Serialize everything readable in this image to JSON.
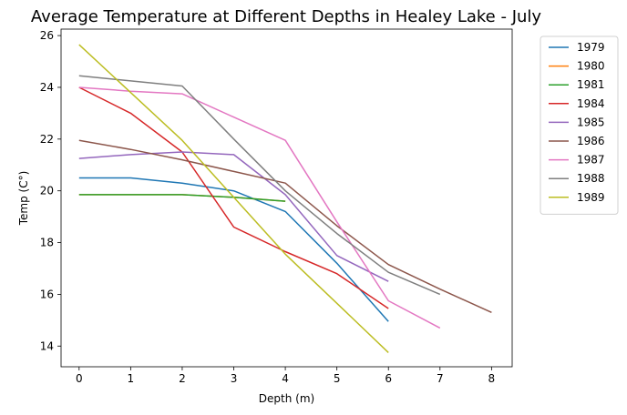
{
  "chart_data": {
    "type": "line",
    "title": "Average Temperature at Different Depths in Healey Lake - July",
    "xlabel": "Depth (m)",
    "ylabel": "Temp (C°)",
    "xlim": [
      -0.35,
      8.4
    ],
    "ylim": [
      13.2,
      26.25
    ],
    "xticks": [
      0,
      1,
      2,
      3,
      4,
      5,
      6,
      7,
      8
    ],
    "yticks": [
      14,
      16,
      18,
      20,
      22,
      24,
      26
    ],
    "grid": false,
    "legend_position": "outside-right",
    "series": [
      {
        "name": "1979",
        "color": "#1f77b4",
        "x": [
          0,
          1,
          2,
          3,
          4,
          5,
          6
        ],
        "y": [
          20.5,
          20.5,
          20.3,
          20.0,
          19.2,
          17.2,
          14.95
        ]
      },
      {
        "name": "1980",
        "color": "#ff7f0e",
        "x": [
          0,
          1,
          2,
          3,
          4
        ],
        "y": [
          19.85,
          19.85,
          19.85,
          19.75,
          19.6
        ]
      },
      {
        "name": "1981",
        "color": "#2ca02c",
        "x": [
          0,
          1,
          2,
          3,
          4
        ],
        "y": [
          19.85,
          19.85,
          19.85,
          19.75,
          19.6
        ]
      },
      {
        "name": "1984",
        "color": "#d62728",
        "x": [
          0,
          1,
          2,
          3,
          4,
          5,
          6
        ],
        "y": [
          24.0,
          23.0,
          21.5,
          18.6,
          17.65,
          16.8,
          15.45
        ]
      },
      {
        "name": "1985",
        "color": "#9467bd",
        "x": [
          0,
          1,
          2,
          3,
          4,
          5,
          6
        ],
        "y": [
          21.25,
          21.4,
          21.5,
          21.4,
          19.85,
          17.5,
          16.5
        ]
      },
      {
        "name": "1986",
        "color": "#8c564b",
        "x": [
          0,
          1,
          2,
          3,
          4,
          5,
          6,
          7,
          8
        ],
        "y": [
          21.95,
          21.6,
          21.2,
          20.75,
          20.3,
          18.65,
          17.15,
          16.2,
          15.3
        ]
      },
      {
        "name": "1987",
        "color": "#e377c2",
        "x": [
          0,
          1,
          2,
          3,
          4,
          5,
          6,
          7
        ],
        "y": [
          24.0,
          23.85,
          23.75,
          22.85,
          21.95,
          18.8,
          15.75,
          14.7
        ]
      },
      {
        "name": "1988",
        "color": "#7f7f7f",
        "x": [
          0,
          1,
          2,
          3,
          4,
          5,
          6,
          7
        ],
        "y": [
          24.45,
          24.25,
          24.05,
          22.0,
          20.0,
          18.35,
          16.85,
          16.0
        ]
      },
      {
        "name": "1989",
        "color": "#bcbd22",
        "x": [
          0,
          1,
          2,
          3,
          4,
          5,
          6
        ],
        "y": [
          25.65,
          23.8,
          21.95,
          19.75,
          17.55,
          15.65,
          13.75
        ]
      }
    ]
  }
}
